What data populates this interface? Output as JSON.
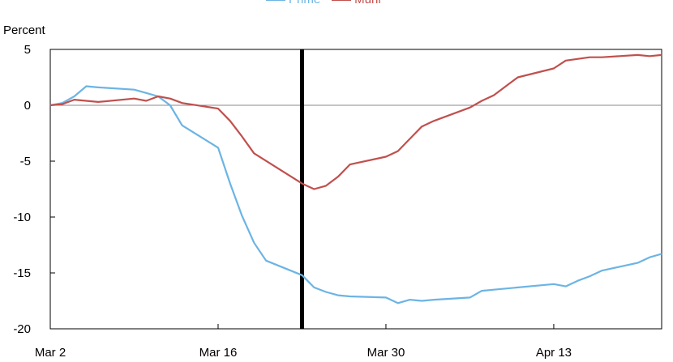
{
  "chart_data": {
    "type": "line",
    "title": "",
    "ylabel": "Percent",
    "xlabel": "",
    "x_tick_labels": [
      "Mar 2",
      "Mar 16",
      "Mar 30",
      "Apr 13"
    ],
    "y_tick_labels": [
      "5",
      "0",
      "-5",
      "-10",
      "-15",
      "-20"
    ],
    "ylim": [
      -20,
      5
    ],
    "xlim": [
      "2020-03-02",
      "2020-04-22"
    ],
    "grid": false,
    "zero_line": true,
    "vertical_marker": "2020-03-23",
    "legend_position": "top-center",
    "series": [
      {
        "name": "Prime",
        "color": "#6cb4e4",
        "points": [
          [
            "2020-03-02",
            0.0
          ],
          [
            "2020-03-03",
            0.2
          ],
          [
            "2020-03-04",
            0.8
          ],
          [
            "2020-03-05",
            1.7
          ],
          [
            "2020-03-06",
            1.6
          ],
          [
            "2020-03-09",
            1.4
          ],
          [
            "2020-03-10",
            1.1
          ],
          [
            "2020-03-11",
            0.8
          ],
          [
            "2020-03-12",
            0.0
          ],
          [
            "2020-03-13",
            -1.8
          ],
          [
            "2020-03-16",
            -3.8
          ],
          [
            "2020-03-17",
            -7.0
          ],
          [
            "2020-03-18",
            -9.9
          ],
          [
            "2020-03-19",
            -12.3
          ],
          [
            "2020-03-20",
            -13.9
          ],
          [
            "2020-03-23",
            -15.2
          ],
          [
            "2020-03-24",
            -16.3
          ],
          [
            "2020-03-25",
            -16.7
          ],
          [
            "2020-03-26",
            -17.0
          ],
          [
            "2020-03-27",
            -17.1
          ],
          [
            "2020-03-30",
            -17.2
          ],
          [
            "2020-03-31",
            -17.7
          ],
          [
            "2020-04-01",
            -17.4
          ],
          [
            "2020-04-02",
            -17.5
          ],
          [
            "2020-04-03",
            -17.4
          ],
          [
            "2020-04-06",
            -17.2
          ],
          [
            "2020-04-07",
            -16.6
          ],
          [
            "2020-04-08",
            -16.5
          ],
          [
            "2020-04-13",
            -16.0
          ],
          [
            "2020-04-14",
            -16.2
          ],
          [
            "2020-04-15",
            -15.7
          ],
          [
            "2020-04-16",
            -15.3
          ],
          [
            "2020-04-17",
            -14.8
          ],
          [
            "2020-04-20",
            -14.1
          ],
          [
            "2020-04-21",
            -13.6
          ],
          [
            "2020-04-22",
            -13.3
          ]
        ]
      },
      {
        "name": "Muni",
        "color": "#c0504d",
        "points": [
          [
            "2020-03-02",
            0.0
          ],
          [
            "2020-03-03",
            0.1
          ],
          [
            "2020-03-04",
            0.5
          ],
          [
            "2020-03-05",
            0.4
          ],
          [
            "2020-03-06",
            0.3
          ],
          [
            "2020-03-09",
            0.6
          ],
          [
            "2020-03-10",
            0.4
          ],
          [
            "2020-03-11",
            0.8
          ],
          [
            "2020-03-12",
            0.6
          ],
          [
            "2020-03-13",
            0.2
          ],
          [
            "2020-03-16",
            -0.3
          ],
          [
            "2020-03-17",
            -1.4
          ],
          [
            "2020-03-18",
            -2.8
          ],
          [
            "2020-03-19",
            -4.3
          ],
          [
            "2020-03-23",
            -7.0
          ],
          [
            "2020-03-24",
            -7.5
          ],
          [
            "2020-03-25",
            -7.2
          ],
          [
            "2020-03-26",
            -6.4
          ],
          [
            "2020-03-27",
            -5.3
          ],
          [
            "2020-03-30",
            -4.6
          ],
          [
            "2020-03-31",
            -4.1
          ],
          [
            "2020-04-01",
            -3.0
          ],
          [
            "2020-04-02",
            -1.9
          ],
          [
            "2020-04-03",
            -1.4
          ],
          [
            "2020-04-06",
            -0.2
          ],
          [
            "2020-04-07",
            0.4
          ],
          [
            "2020-04-08",
            0.9
          ],
          [
            "2020-04-09",
            1.7
          ],
          [
            "2020-04-10",
            2.5
          ],
          [
            "2020-04-13",
            3.3
          ],
          [
            "2020-04-14",
            4.0
          ],
          [
            "2020-04-16",
            4.3
          ],
          [
            "2020-04-17",
            4.3
          ],
          [
            "2020-04-20",
            4.5
          ],
          [
            "2020-04-21",
            4.4
          ],
          [
            "2020-04-22",
            4.5
          ]
        ]
      }
    ]
  }
}
